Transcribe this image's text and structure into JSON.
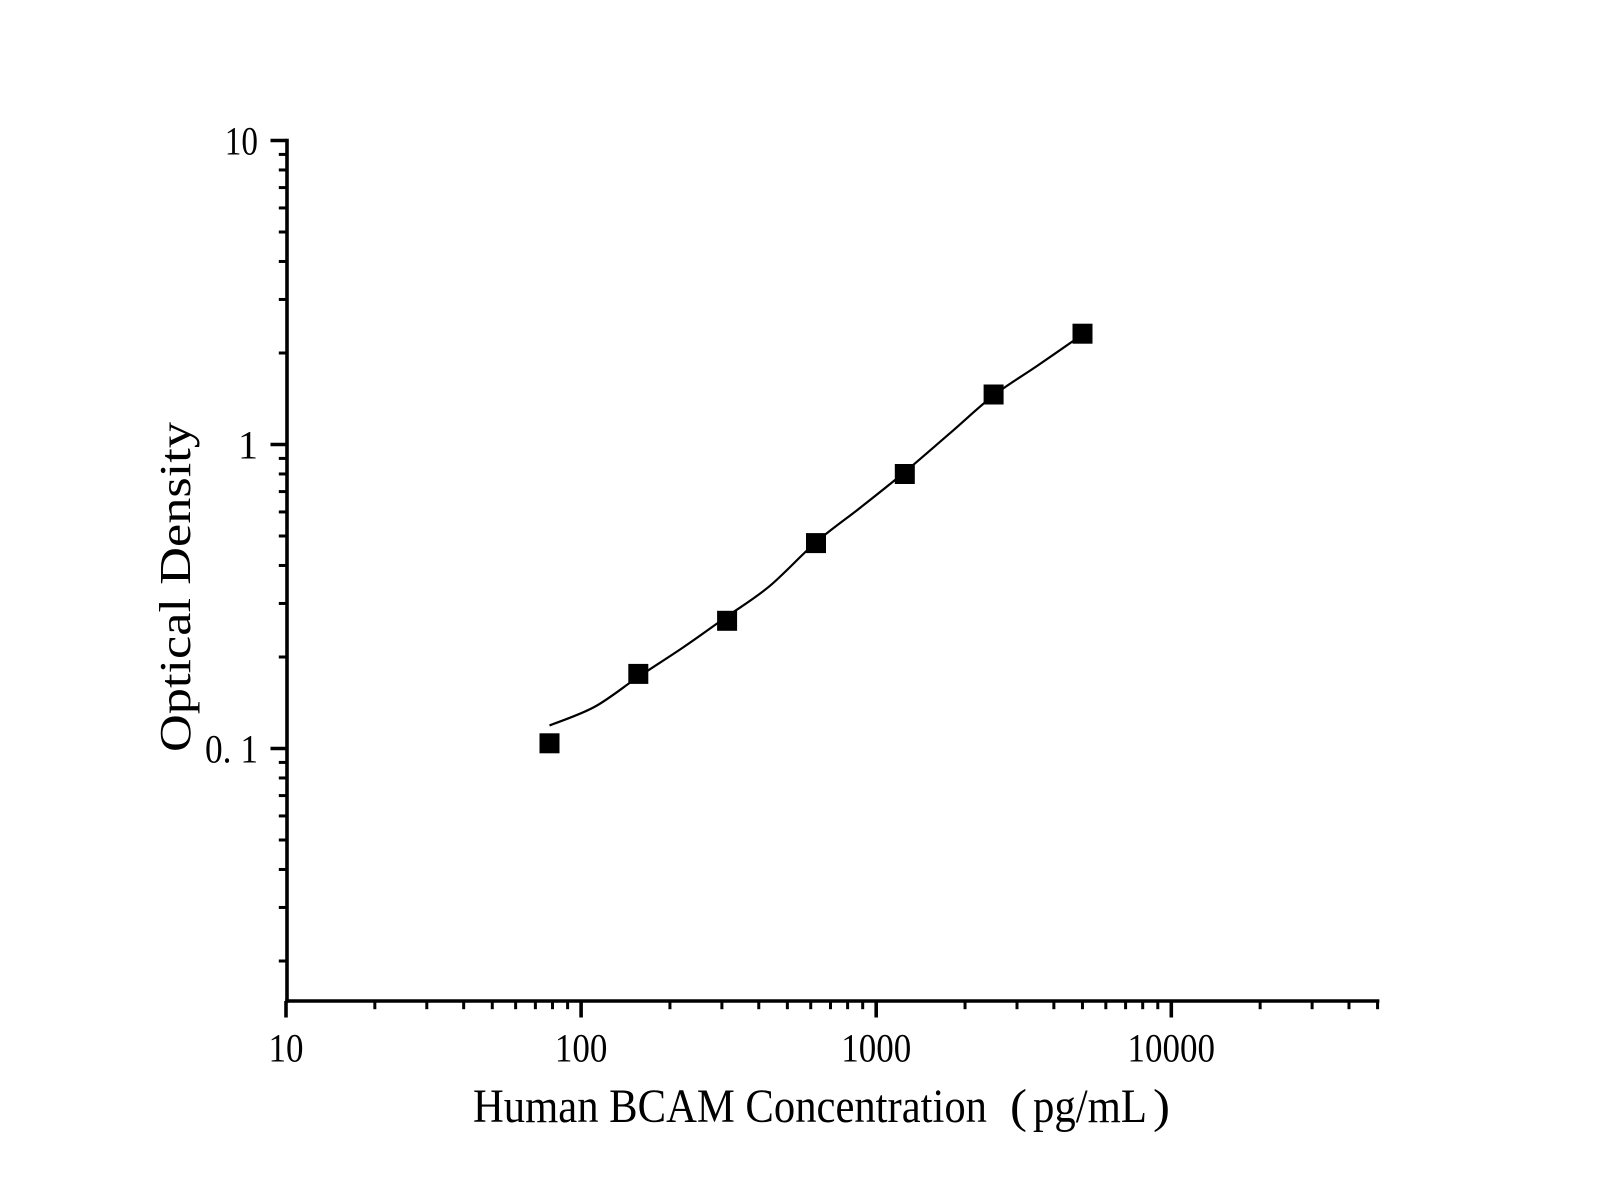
{
  "chart_data": {
    "type": "scatter",
    "title": "",
    "xlabel": "Human BCAM Concentration（pg/mL）",
    "ylabel": "Optical Density",
    "x_scale": "log",
    "y_scale": "log",
    "x_range": [
      10,
      50000
    ],
    "y_range": [
      0.015,
      10
    ],
    "x_ticks_major": [
      10,
      100,
      1000,
      10000
    ],
    "x_tick_labels": [
      "10",
      "100",
      "1000",
      "10000"
    ],
    "x_ticks_minor": [
      20,
      30,
      40,
      50,
      60,
      70,
      80,
      90,
      200,
      300,
      400,
      500,
      600,
      700,
      800,
      900,
      2000,
      3000,
      4000,
      5000,
      6000,
      7000,
      8000,
      9000,
      20000,
      30000,
      40000,
      50000
    ],
    "y_ticks_major": [
      10,
      1,
      0.1
    ],
    "y_tick_labels": [
      "10",
      "1",
      "0. 1"
    ],
    "y_ticks_minor": [
      9,
      8,
      7,
      6,
      5,
      4,
      3,
      2,
      0.9,
      0.8,
      0.7,
      0.6,
      0.5,
      0.4,
      0.3,
      0.2,
      0.09,
      0.08,
      0.07,
      0.06,
      0.05,
      0.04,
      0.03,
      0.02
    ],
    "grid": false,
    "legend_position": "none",
    "series": [
      {
        "name": "Human BCAM standard curve",
        "marker": "filled-square",
        "marker_color": "#000000",
        "points": [
          [
            78.125,
            0.104
          ],
          [
            156.25,
            0.176
          ],
          [
            312.5,
            0.263
          ],
          [
            625,
            0.474
          ],
          [
            1250,
            0.8
          ],
          [
            2500,
            1.46
          ],
          [
            5000,
            2.315
          ]
        ]
      }
    ],
    "fit_line": {
      "name": "fitted curve",
      "color": "#000000",
      "samples": [
        [
          78.125,
          0.119
        ],
        [
          111,
          0.137
        ],
        [
          156.25,
          0.172
        ],
        [
          220,
          0.214
        ],
        [
          312.5,
          0.272
        ],
        [
          435,
          0.342
        ],
        [
          625,
          0.477
        ],
        [
          886,
          0.621
        ],
        [
          1250,
          0.812
        ],
        [
          1778,
          1.089
        ],
        [
          2500,
          1.45
        ],
        [
          3532,
          1.82
        ],
        [
          5000,
          2.3
        ]
      ]
    },
    "axis_color": "#000000",
    "background_color": "#ffffff"
  }
}
